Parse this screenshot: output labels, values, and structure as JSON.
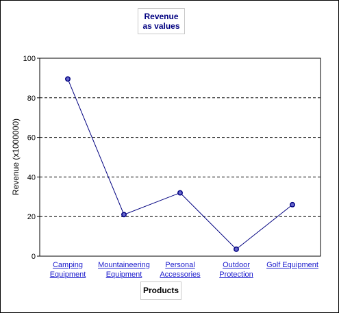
{
  "chart_data": {
    "type": "line",
    "title_lines": [
      "Revenue",
      "as values"
    ],
    "xlabel": "Products",
    "ylabel": "Revenue (x1000000)",
    "ylim": [
      0,
      100
    ],
    "yticks": [
      "0",
      "20",
      "40",
      "60",
      "80",
      "100"
    ],
    "grid": "horizontal dashed",
    "categories": [
      [
        "Camping",
        "Equipment"
      ],
      [
        "Mountaineering",
        "Equipment"
      ],
      [
        "Personal",
        "Accessories"
      ],
      [
        "Outdoor",
        "Protection"
      ],
      [
        "Golf Equipment"
      ]
    ],
    "values": [
      89.5,
      21,
      32,
      3.5,
      26
    ],
    "colors": {
      "line": "#000080",
      "marker_fill": "#6666cc",
      "link": "#1a1acc",
      "title": "#000080"
    }
  }
}
